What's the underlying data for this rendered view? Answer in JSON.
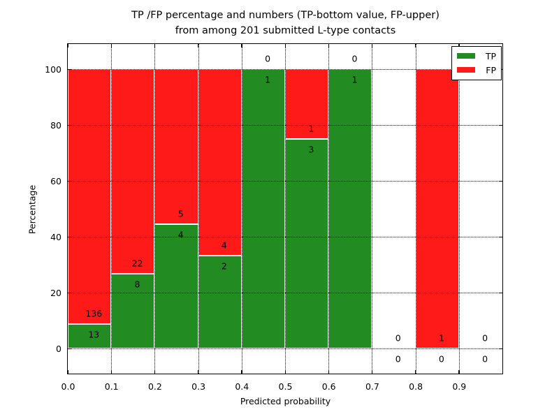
{
  "chart_data": {
    "type": "bar",
    "stacked": true,
    "normalization": "per-bin percentage (TP+FP scaled to 100%)",
    "title_lines": [
      "TP /FP percentage and numbers (TP-bottom value, FP-upper)",
      "from among 201 submitted L-type contacts"
    ],
    "xlabel": "Predicted probability",
    "ylabel": "Percentage",
    "bin_edges": [
      0.0,
      0.1,
      0.2,
      0.3,
      0.4,
      0.5,
      0.6,
      0.7,
      0.8,
      0.9,
      1.0
    ],
    "series": [
      {
        "name": "TP",
        "color": "#228b22",
        "values": [
          13,
          8,
          4,
          2,
          1,
          3,
          1,
          0,
          0,
          0
        ]
      },
      {
        "name": "FP",
        "color": "#ff1a1a",
        "values": [
          136,
          22,
          5,
          4,
          0,
          1,
          0,
          0,
          1,
          0
        ]
      }
    ],
    "tp_percent_per_bin": [
      8.7,
      26.7,
      44.4,
      33.3,
      100.0,
      75.0,
      100.0,
      null,
      0.0,
      null
    ],
    "x_ticks": [
      "0.0",
      "0.1",
      "0.2",
      "0.3",
      "0.4",
      "0.5",
      "0.6",
      "0.7",
      "0.8",
      "0.9"
    ],
    "y_ticks": [
      "0",
      "20",
      "40",
      "60",
      "80",
      "100"
    ],
    "xlim": [
      0.0,
      1.0
    ],
    "ylim": [
      -10,
      110
    ],
    "grid": "dotted",
    "legend": {
      "position": "upper right",
      "entries": [
        {
          "label": "TP",
          "color": "#228b22"
        },
        {
          "label": "FP",
          "color": "#ff1a1a"
        }
      ]
    }
  }
}
